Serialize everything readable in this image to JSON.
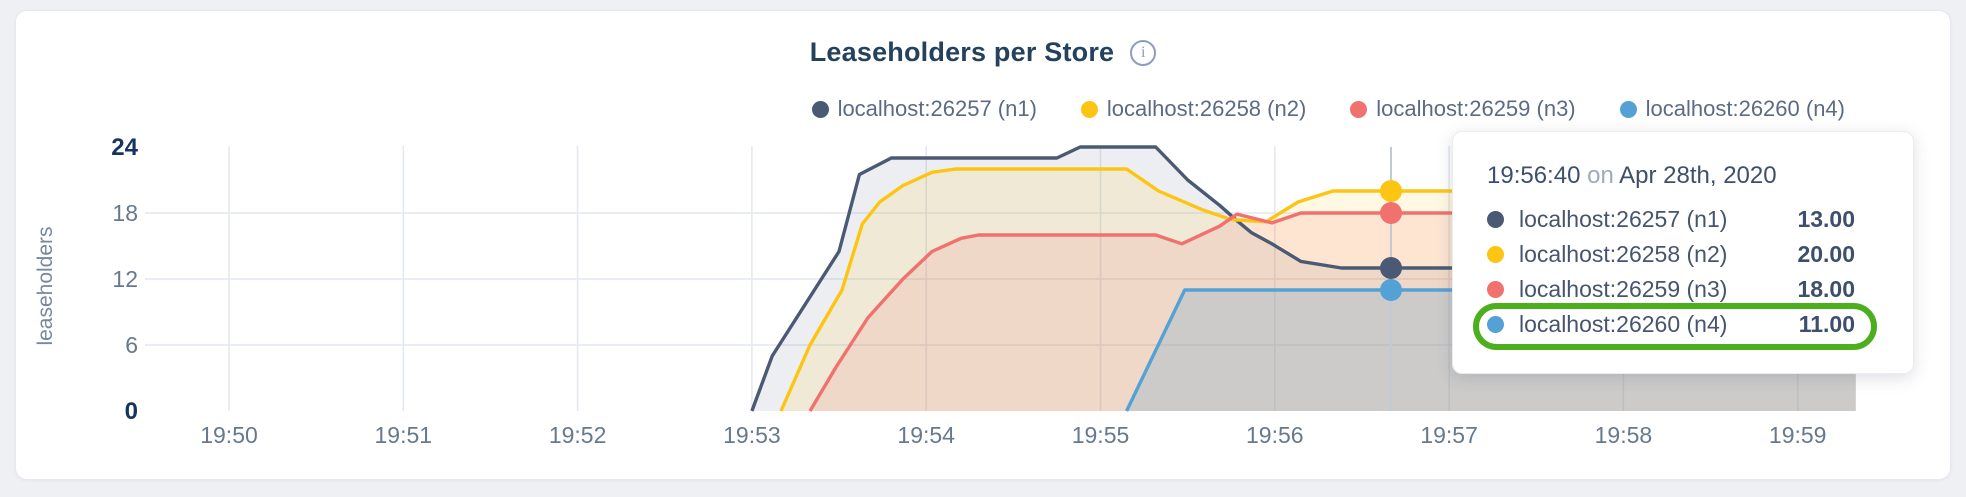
{
  "header": {
    "title": "Leaseholders per Store"
  },
  "info_icon": {
    "glyph": "i"
  },
  "chart_data": {
    "type": "line",
    "title": "Leaseholders per Store",
    "xlabel": "",
    "ylabel": "leaseholders",
    "ylim": [
      0,
      24
    ],
    "y_ticks": [
      0,
      6,
      12,
      18,
      24
    ],
    "x_tick_labels": [
      "19:50",
      "19:51",
      "19:52",
      "19:53",
      "19:54",
      "19:55",
      "19:56",
      "19:57",
      "19:58",
      "19:59"
    ],
    "x_unit": "seconds after 19:50:00",
    "grid": true,
    "legend_position": "top-right",
    "series": [
      {
        "name": "localhost:26257 (n1)",
        "color": "#4a5a75",
        "fill_opacity": 0.1,
        "points": [
          [
            180,
            0
          ],
          [
            187,
            5
          ],
          [
            210,
            14.5
          ],
          [
            217,
            21.5
          ],
          [
            228,
            23
          ],
          [
            285,
            23
          ],
          [
            293,
            24
          ],
          [
            319,
            24
          ],
          [
            330,
            21
          ],
          [
            341,
            18.7
          ],
          [
            347,
            17.3
          ],
          [
            352,
            16.2
          ],
          [
            359,
            15.2
          ],
          [
            369,
            13.6
          ],
          [
            383,
            13
          ],
          [
            560,
            13
          ]
        ]
      },
      {
        "name": "localhost:26258 (n2)",
        "color": "#fdc513",
        "fill_opacity": 0.12,
        "points": [
          [
            190,
            0
          ],
          [
            200,
            6
          ],
          [
            211,
            11
          ],
          [
            218,
            17
          ],
          [
            224,
            19
          ],
          [
            232,
            20.5
          ],
          [
            242,
            21.7
          ],
          [
            250,
            22
          ],
          [
            309,
            22
          ],
          [
            320,
            20
          ],
          [
            335,
            18.3
          ],
          [
            345,
            17.4
          ],
          [
            357,
            17.2
          ],
          [
            368,
            19
          ],
          [
            380,
            20
          ],
          [
            560,
            20
          ]
        ]
      },
      {
        "name": "localhost:26259 (n3)",
        "color": "#f0716e",
        "fill_opacity": 0.14,
        "points": [
          [
            200,
            0
          ],
          [
            209,
            4
          ],
          [
            220,
            8.5
          ],
          [
            232,
            12
          ],
          [
            242,
            14.5
          ],
          [
            252,
            15.7
          ],
          [
            258,
            16
          ],
          [
            319,
            16
          ],
          [
            328,
            15.2
          ],
          [
            341,
            16.8
          ],
          [
            347,
            17.9
          ],
          [
            353,
            17.5
          ],
          [
            359,
            17.1
          ],
          [
            369,
            18
          ],
          [
            560,
            18
          ]
        ]
      },
      {
        "name": "localhost:26260 (n4)",
        "color": "#54a1d6",
        "fill_opacity": 0.22,
        "points": [
          [
            309,
            0
          ],
          [
            329,
            11
          ],
          [
            560,
            11
          ]
        ]
      }
    ],
    "hover": {
      "time": "19:56:40",
      "seconds_from_start": 400,
      "values": [
        13,
        20,
        18,
        11
      ]
    }
  },
  "tooltip": {
    "time": "19:56:40",
    "connector": "on",
    "date": "Apr 28th, 2020",
    "rows": [
      {
        "label": "localhost:26257 (n1)",
        "value": "13.00",
        "color": "#4a5a75",
        "highlighted": false
      },
      {
        "label": "localhost:26258 (n2)",
        "value": "20.00",
        "color": "#fdc513",
        "highlighted": false
      },
      {
        "label": "localhost:26259 (n3)",
        "value": "18.00",
        "color": "#f0716e",
        "highlighted": false
      },
      {
        "label": "localhost:26260 (n4)",
        "value": "11.00",
        "color": "#54a1d6",
        "highlighted": true
      }
    ],
    "highlight_color": "#4caf1d"
  },
  "colors": {
    "page_background": "#eef0f4",
    "card_background": "#ffffff",
    "gridline": "#e4e9f1",
    "axis_text": "#66798f",
    "axis_text_bold": "#16345e",
    "title_text": "#24415e"
  }
}
